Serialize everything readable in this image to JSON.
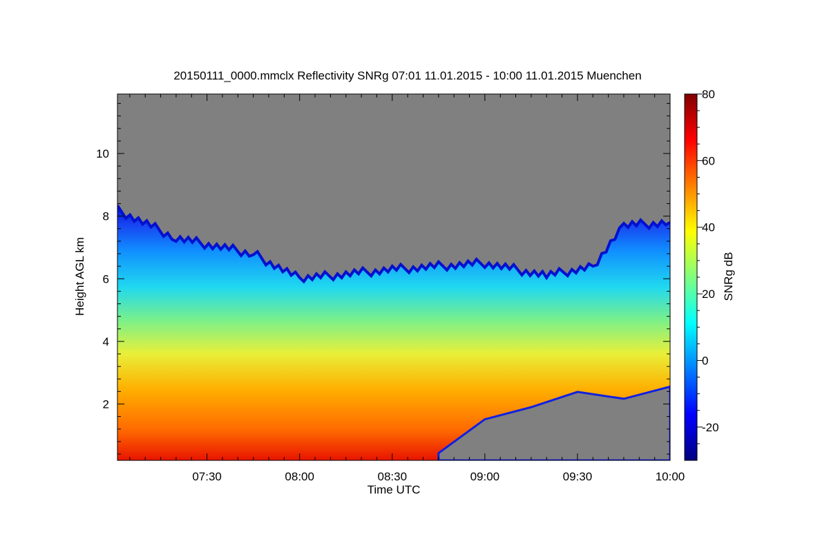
{
  "chart_data": {
    "type": "heatmap",
    "title": "20150111_0000.mmclx Reflectivity SNRg   07:01 11.01.2015 - 10:00 11.01.2015 Muenchen",
    "xlabel": "Time UTC",
    "ylabel": "Height AGL km",
    "colorbar_label": "SNRg dB",
    "x_range": [
      "07:01",
      "10:00"
    ],
    "x_ticks": [
      "07:30",
      "08:00",
      "08:30",
      "09:00",
      "09:30",
      "10:00"
    ],
    "ylim": [
      0.2,
      11.9
    ],
    "y_ticks": [
      "2",
      "4",
      "6",
      "8",
      "10"
    ],
    "colorbar_range": [
      -30,
      80
    ],
    "colorbar_ticks": [
      "-20",
      "0",
      "20",
      "40",
      "60",
      "80"
    ],
    "colormap": [
      "#000080",
      "#0000ff",
      "#0080ff",
      "#00ffff",
      "#80ff80",
      "#ffff00",
      "#ff8000",
      "#ff0000",
      "#800000"
    ],
    "no_signal_color": "#808080",
    "signal_top_km": [
      {
        "time": "07:01",
        "height": 8.2
      },
      {
        "time": "07:20",
        "height": 7.3
      },
      {
        "time": "07:45",
        "height": 6.8
      },
      {
        "time": "08:00",
        "height": 6.0
      },
      {
        "time": "08:30",
        "height": 6.3
      },
      {
        "time": "09:00",
        "height": 6.5
      },
      {
        "time": "09:20",
        "height": 6.1
      },
      {
        "time": "09:35",
        "height": 6.4
      },
      {
        "time": "09:45",
        "height": 7.7
      },
      {
        "time": "10:00",
        "height": 7.8
      }
    ],
    "low_level_gap_km": [
      {
        "time": "08:45",
        "top": 0.3
      },
      {
        "time": "09:00",
        "top": 1.6
      },
      {
        "time": "09:15",
        "top": 1.9
      },
      {
        "time": "09:30",
        "top": 2.3
      },
      {
        "time": "09:45",
        "top": 2.3
      },
      {
        "time": "10:00",
        "top": 2.6
      }
    ],
    "snr_dB_profile": [
      {
        "height": 0.2,
        "snr": 65
      },
      {
        "height": 2.0,
        "snr": 50
      },
      {
        "height": 3.5,
        "snr": 35
      },
      {
        "height": 5.0,
        "snr": 15
      },
      {
        "height": 6.5,
        "snr": 0
      },
      {
        "height": 7.5,
        "snr": -15
      }
    ]
  }
}
